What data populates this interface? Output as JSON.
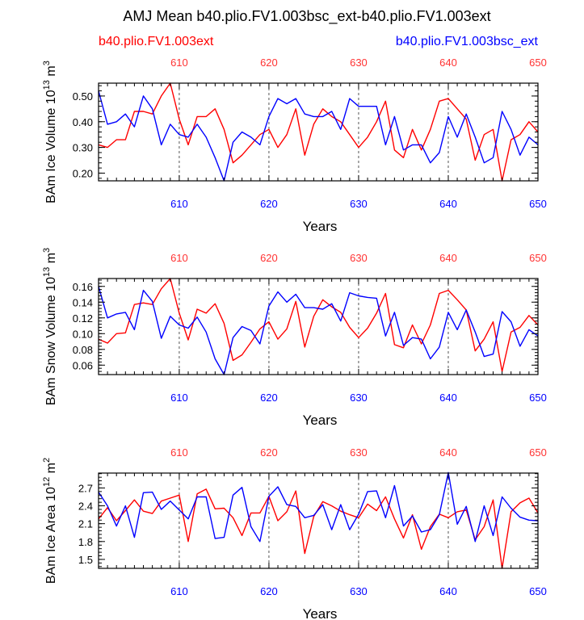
{
  "figure": {
    "title": "AMJ Mean b40.plio.FV1.003bsc_ext-b40.plio.FV1.003ext",
    "legend_left": "b40.plio.FV1.003ext",
    "legend_right": "b40.plio.FV1.003bsc_ext"
  },
  "colors": {
    "red_series": "#ff0000",
    "blue_series": "#0000ff",
    "axis": "#000000",
    "top_tick_label": "#ff3333"
  },
  "chart_data": [
    {
      "type": "line",
      "title": "AMJ Mean b40.plio.FV1.003bsc_ext-b40.plio.FV1.003ext",
      "ylabel_main": "BAm Ice Volume 10",
      "ylabel_exp": "13",
      "ylabel_unit": " m",
      "ylabel_unit_exp": "3",
      "xlabel": "Years",
      "xlim": [
        601,
        650
      ],
      "ylim": [
        0.17,
        0.55
      ],
      "yticks": [
        0.2,
        0.3,
        0.4,
        0.5
      ],
      "ytick_labels": [
        "0.20",
        "0.30",
        "0.40",
        "0.50"
      ],
      "xticks": [
        610,
        620,
        630,
        640,
        650
      ],
      "xtick_labels": [
        "610",
        "620",
        "630",
        "640",
        "650"
      ],
      "x": [
        601,
        602,
        603,
        604,
        605,
        606,
        607,
        608,
        609,
        610,
        611,
        612,
        613,
        614,
        615,
        616,
        617,
        618,
        619,
        620,
        621,
        622,
        623,
        624,
        625,
        626,
        627,
        628,
        629,
        630,
        631,
        632,
        633,
        634,
        635,
        636,
        637,
        638,
        639,
        640,
        641,
        642,
        643,
        644,
        645,
        646,
        647,
        648,
        649,
        650
      ],
      "series": [
        {
          "name": "b40.plio.FV1.003ext",
          "color": "#ff0000",
          "values": [
            0.31,
            0.3,
            0.33,
            0.33,
            0.44,
            0.44,
            0.43,
            0.5,
            0.55,
            0.41,
            0.31,
            0.42,
            0.42,
            0.45,
            0.37,
            0.24,
            0.27,
            0.31,
            0.35,
            0.37,
            0.3,
            0.35,
            0.45,
            0.27,
            0.39,
            0.45,
            0.42,
            0.4,
            0.35,
            0.3,
            0.34,
            0.4,
            0.48,
            0.29,
            0.26,
            0.37,
            0.29,
            0.37,
            0.48,
            0.49,
            0.45,
            0.41,
            0.25,
            0.35,
            0.37,
            0.17,
            0.33,
            0.35,
            0.4,
            0.36
          ]
        },
        {
          "name": "b40.plio.FV1.003bsc_ext",
          "color": "#0000ff",
          "values": [
            0.52,
            0.39,
            0.4,
            0.43,
            0.38,
            0.5,
            0.45,
            0.31,
            0.39,
            0.35,
            0.34,
            0.39,
            0.34,
            0.26,
            0.17,
            0.32,
            0.36,
            0.34,
            0.31,
            0.42,
            0.49,
            0.47,
            0.49,
            0.43,
            0.42,
            0.42,
            0.44,
            0.37,
            0.49,
            0.46,
            0.46,
            0.46,
            0.31,
            0.42,
            0.29,
            0.31,
            0.31,
            0.24,
            0.28,
            0.42,
            0.34,
            0.43,
            0.34,
            0.24,
            0.26,
            0.44,
            0.37,
            0.27,
            0.34,
            0.31
          ]
        }
      ]
    },
    {
      "type": "line",
      "ylabel_main": "BAm Snow Volume 10",
      "ylabel_exp": "13",
      "ylabel_unit": " m",
      "ylabel_unit_exp": "3",
      "xlabel": "Years",
      "xlim": [
        601,
        650
      ],
      "ylim": [
        0.048,
        0.17
      ],
      "yticks": [
        0.06,
        0.08,
        0.1,
        0.12,
        0.14,
        0.16
      ],
      "ytick_labels": [
        "0.06",
        "0.08",
        "0.10",
        "0.12",
        "0.14",
        "0.16"
      ],
      "xticks": [
        610,
        620,
        630,
        640,
        650
      ],
      "xtick_labels": [
        "610",
        "620",
        "630",
        "640",
        "650"
      ],
      "x": [
        601,
        602,
        603,
        604,
        605,
        606,
        607,
        608,
        609,
        610,
        611,
        612,
        613,
        614,
        615,
        616,
        617,
        618,
        619,
        620,
        621,
        622,
        623,
        624,
        625,
        626,
        627,
        628,
        629,
        630,
        631,
        632,
        633,
        634,
        635,
        636,
        637,
        638,
        639,
        640,
        641,
        642,
        643,
        644,
        645,
        646,
        647,
        648,
        649,
        650
      ],
      "series": [
        {
          "name": "b40.plio.FV1.003ext",
          "color": "#ff0000",
          "values": [
            0.093,
            0.088,
            0.1,
            0.101,
            0.137,
            0.139,
            0.137,
            0.157,
            0.17,
            0.126,
            0.092,
            0.131,
            0.126,
            0.138,
            0.113,
            0.066,
            0.073,
            0.089,
            0.106,
            0.115,
            0.093,
            0.106,
            0.141,
            0.083,
            0.122,
            0.143,
            0.134,
            0.127,
            0.108,
            0.095,
            0.107,
            0.126,
            0.151,
            0.086,
            0.082,
            0.111,
            0.087,
            0.111,
            0.151,
            0.155,
            0.143,
            0.13,
            0.078,
            0.093,
            0.115,
            0.052,
            0.102,
            0.108,
            0.123,
            0.111
          ]
        },
        {
          "name": "b40.plio.FV1.003bsc_ext",
          "color": "#0000ff",
          "values": [
            0.16,
            0.12,
            0.125,
            0.127,
            0.105,
            0.155,
            0.141,
            0.094,
            0.122,
            0.111,
            0.107,
            0.121,
            0.102,
            0.068,
            0.048,
            0.095,
            0.109,
            0.104,
            0.087,
            0.135,
            0.153,
            0.14,
            0.15,
            0.133,
            0.133,
            0.131,
            0.138,
            0.116,
            0.152,
            0.148,
            0.146,
            0.145,
            0.097,
            0.127,
            0.085,
            0.095,
            0.093,
            0.068,
            0.083,
            0.127,
            0.105,
            0.13,
            0.102,
            0.071,
            0.074,
            0.128,
            0.115,
            0.084,
            0.105,
            0.097
          ]
        }
      ]
    },
    {
      "type": "line",
      "ylabel_main": "BAm Ice Area 10",
      "ylabel_exp": "12",
      "ylabel_unit": " m",
      "ylabel_unit_exp": "2",
      "xlabel": "Years",
      "xlim": [
        601,
        650
      ],
      "ylim": [
        1.35,
        2.95
      ],
      "yticks": [
        1.5,
        1.8,
        2.1,
        2.4,
        2.7
      ],
      "ytick_labels": [
        "1.5",
        "1.8",
        "2.1",
        "2.4",
        "2.7"
      ],
      "xticks": [
        610,
        620,
        630,
        640,
        650
      ],
      "xtick_labels": [
        "610",
        "620",
        "630",
        "640",
        "650"
      ],
      "x": [
        601,
        602,
        603,
        604,
        605,
        606,
        607,
        608,
        609,
        610,
        611,
        612,
        613,
        614,
        615,
        616,
        617,
        618,
        619,
        620,
        621,
        622,
        623,
        624,
        625,
        626,
        627,
        628,
        629,
        630,
        631,
        632,
        633,
        634,
        635,
        636,
        637,
        638,
        639,
        640,
        641,
        642,
        643,
        644,
        645,
        646,
        647,
        648,
        649,
        650
      ],
      "series": [
        {
          "name": "b40.plio.FV1.003ext",
          "color": "#ff0000",
          "values": [
            2.18,
            2.37,
            2.15,
            2.32,
            2.5,
            2.31,
            2.27,
            2.48,
            2.53,
            2.58,
            1.8,
            2.6,
            2.68,
            2.35,
            2.36,
            2.2,
            1.9,
            2.28,
            2.28,
            2.56,
            2.15,
            2.3,
            2.65,
            1.6,
            2.22,
            2.47,
            2.4,
            2.31,
            2.25,
            2.2,
            2.43,
            2.32,
            2.55,
            2.18,
            1.86,
            2.25,
            1.67,
            2.05,
            2.26,
            2.2,
            2.3,
            2.33,
            1.83,
            2.05,
            2.5,
            1.35,
            2.3,
            2.45,
            2.53,
            2.28
          ]
        },
        {
          "name": "b40.plio.FV1.003bsc_ext",
          "color": "#0000ff",
          "values": [
            2.63,
            2.4,
            2.06,
            2.4,
            1.87,
            2.62,
            2.63,
            2.34,
            2.48,
            2.33,
            2.18,
            2.55,
            2.55,
            1.85,
            1.87,
            2.58,
            2.71,
            2.05,
            1.8,
            2.56,
            2.72,
            2.42,
            2.39,
            2.2,
            2.24,
            2.42,
            2.0,
            2.42,
            2.0,
            2.26,
            2.64,
            2.65,
            2.2,
            2.74,
            2.06,
            2.23,
            1.96,
            2.0,
            2.25,
            2.96,
            2.09,
            2.39,
            1.8,
            2.4,
            1.9,
            2.55,
            2.36,
            2.21,
            2.16,
            2.15
          ]
        }
      ]
    }
  ]
}
